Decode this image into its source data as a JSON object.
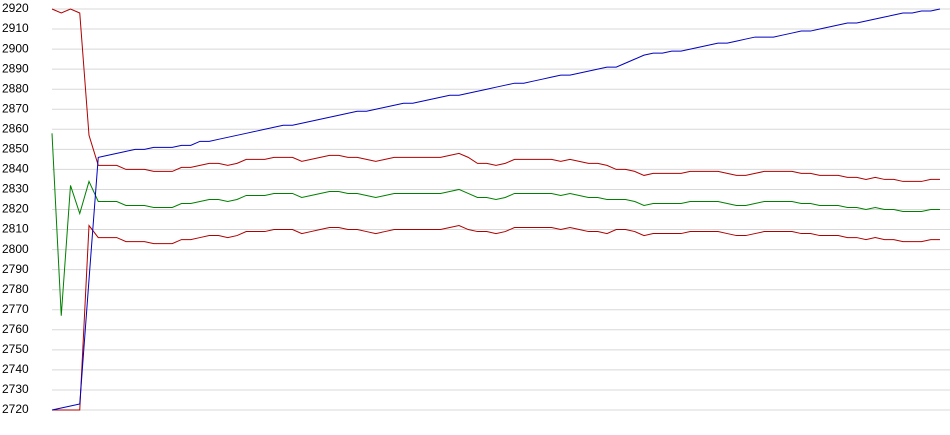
{
  "chart_data": {
    "type": "line",
    "categories": [
      null,
      null,
      null,
      null,
      null,
      null,
      null,
      null,
      null,
      null,
      null,
      null,
      null,
      null,
      null,
      null,
      null,
      null,
      null,
      null,
      null,
      null,
      null,
      null,
      null,
      null,
      null,
      null,
      null,
      null,
      null,
      null,
      null,
      null,
      null,
      null,
      null,
      null,
      null,
      null,
      null,
      null,
      null,
      null,
      null,
      null,
      null,
      null,
      null,
      null,
      null,
      null,
      null,
      null,
      null,
      null,
      null,
      null,
      null,
      null,
      null,
      null,
      null,
      null,
      null,
      null,
      null,
      null,
      null,
      null,
      null,
      null,
      null,
      null,
      null,
      null,
      null,
      null,
      null,
      null,
      null,
      null,
      null,
      null,
      null,
      null,
      null,
      null,
      null,
      null,
      null,
      null,
      null,
      null,
      null,
      null,
      null
    ],
    "series": [
      {
        "color": "#b00000",
        "values": [
          2920,
          2918,
          2920,
          2918,
          2857,
          2842,
          2842,
          2842,
          2840,
          2840,
          2840,
          2839,
          2839,
          2839,
          2841,
          2841,
          2842,
          2843,
          2843,
          2842,
          2843,
          2845,
          2845,
          2845,
          2846,
          2846,
          2846,
          2844,
          2845,
          2846,
          2847,
          2847,
          2846,
          2846,
          2845,
          2844,
          2845,
          2846,
          2846,
          2846,
          2846,
          2846,
          2846,
          2847,
          2848,
          2846,
          2843,
          2843,
          2842,
          2843,
          2845,
          2845,
          2845,
          2845,
          2845,
          2844,
          2845,
          2844,
          2843,
          2843,
          2842,
          2840,
          2840,
          2839,
          2837,
          2838,
          2838,
          2838,
          2838,
          2839,
          2839,
          2839,
          2839,
          2838,
          2837,
          2837,
          2838,
          2839,
          2839,
          2839,
          2839,
          2838,
          2838,
          2837,
          2837,
          2837,
          2836,
          2836,
          2835,
          2836,
          2835,
          2835,
          2834,
          2834,
          2834,
          2835,
          2835
        ]
      },
      {
        "color": "#008000",
        "values": [
          2858,
          2767,
          2832,
          2818,
          2834,
          2824,
          2824,
          2824,
          2822,
          2822,
          2822,
          2821,
          2821,
          2821,
          2823,
          2823,
          2824,
          2825,
          2825,
          2824,
          2825,
          2827,
          2827,
          2827,
          2828,
          2828,
          2828,
          2826,
          2827,
          2828,
          2829,
          2829,
          2828,
          2828,
          2827,
          2826,
          2827,
          2828,
          2828,
          2828,
          2828,
          2828,
          2828,
          2829,
          2830,
          2828,
          2826,
          2826,
          2825,
          2826,
          2828,
          2828,
          2828,
          2828,
          2828,
          2827,
          2828,
          2827,
          2826,
          2826,
          2825,
          2825,
          2825,
          2824,
          2822,
          2823,
          2823,
          2823,
          2823,
          2824,
          2824,
          2824,
          2824,
          2823,
          2822,
          2822,
          2823,
          2824,
          2824,
          2824,
          2824,
          2823,
          2823,
          2822,
          2822,
          2822,
          2821,
          2821,
          2820,
          2821,
          2820,
          2820,
          2819,
          2819,
          2819,
          2820,
          2820
        ]
      },
      {
        "color": "#b00000",
        "values": [
          2720,
          2720,
          2720,
          2720,
          2812,
          2806,
          2806,
          2806,
          2804,
          2804,
          2804,
          2803,
          2803,
          2803,
          2805,
          2805,
          2806,
          2807,
          2807,
          2806,
          2807,
          2809,
          2809,
          2809,
          2810,
          2810,
          2810,
          2808,
          2809,
          2810,
          2811,
          2811,
          2810,
          2810,
          2809,
          2808,
          2809,
          2810,
          2810,
          2810,
          2810,
          2810,
          2810,
          2811,
          2812,
          2810,
          2809,
          2809,
          2808,
          2809,
          2811,
          2811,
          2811,
          2811,
          2811,
          2810,
          2811,
          2810,
          2809,
          2809,
          2808,
          2810,
          2810,
          2809,
          2807,
          2808,
          2808,
          2808,
          2808,
          2809,
          2809,
          2809,
          2809,
          2808,
          2807,
          2807,
          2808,
          2809,
          2809,
          2809,
          2809,
          2808,
          2808,
          2807,
          2807,
          2807,
          2806,
          2806,
          2805,
          2806,
          2805,
          2805,
          2804,
          2804,
          2804,
          2805,
          2805
        ]
      },
      {
        "color": "#0000c0",
        "values": [
          2720,
          2721,
          2722,
          2723,
          2785,
          2846,
          2847,
          2848,
          2849,
          2850,
          2850,
          2851,
          2851,
          2851,
          2852,
          2852,
          2854,
          2854,
          2855,
          2856,
          2857,
          2858,
          2859,
          2860,
          2861,
          2862,
          2862,
          2863,
          2864,
          2865,
          2866,
          2867,
          2868,
          2869,
          2869,
          2870,
          2871,
          2872,
          2873,
          2873,
          2874,
          2875,
          2876,
          2877,
          2877,
          2878,
          2879,
          2880,
          2881,
          2882,
          2883,
          2883,
          2884,
          2885,
          2886,
          2887,
          2887,
          2888,
          2889,
          2890,
          2891,
          2891,
          2893,
          2895,
          2897,
          2898,
          2898,
          2899,
          2899,
          2900,
          2901,
          2902,
          2903,
          2903,
          2904,
          2905,
          2906,
          2906,
          2906,
          2907,
          2908,
          2909,
          2909,
          2910,
          2911,
          2912,
          2913,
          2913,
          2914,
          2915,
          2916,
          2917,
          2918,
          2918,
          2919,
          2919,
          2920
        ]
      }
    ],
    "ylim": [
      2720,
      2920
    ],
    "yticks": [
      2720,
      2730,
      2740,
      2750,
      2760,
      2770,
      2780,
      2790,
      2800,
      2810,
      2820,
      2830,
      2840,
      2850,
      2860,
      2870,
      2880,
      2890,
      2900,
      2910,
      2920
    ],
    "grid": true
  }
}
